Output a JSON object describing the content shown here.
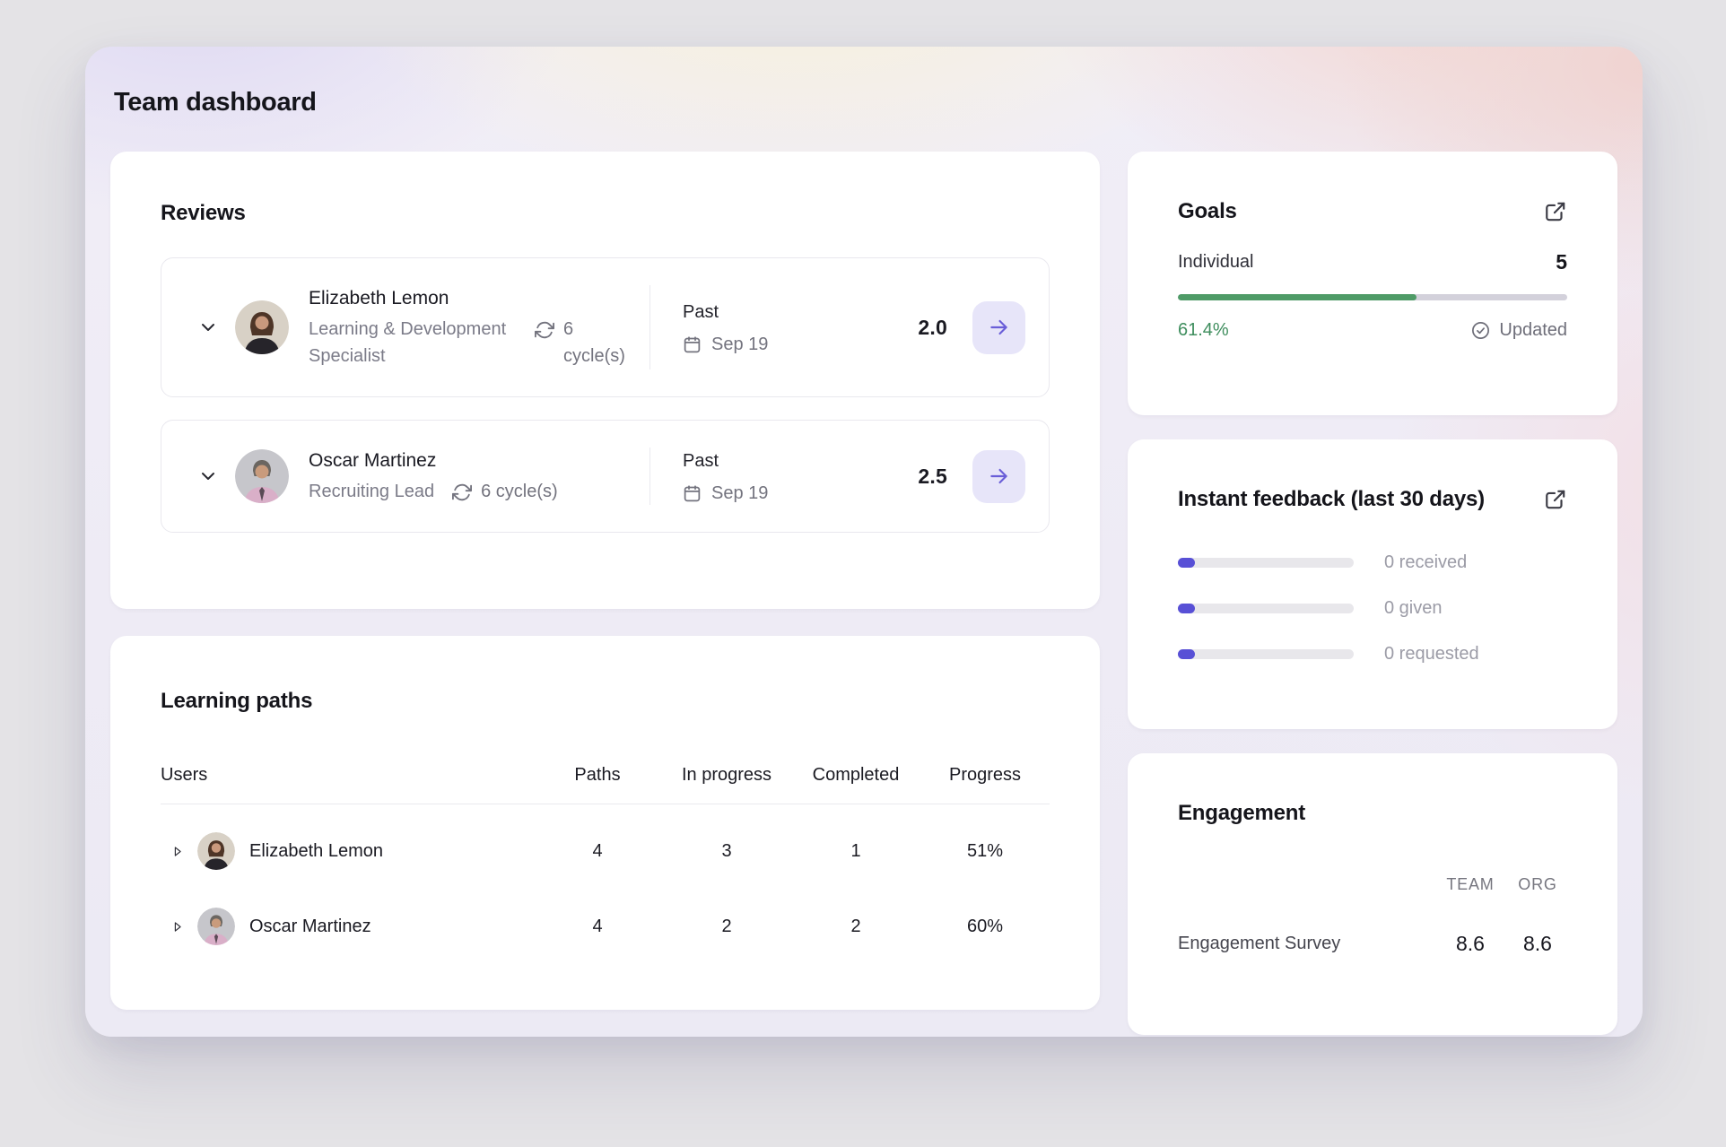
{
  "page": {
    "title": "Team dashboard"
  },
  "colors": {
    "accent_purple": "#5850D6",
    "button_purple_bg": "#E7E5F9",
    "success_green": "#4F9B67",
    "success_green_text": "#3F8E5E",
    "card_background": "#FFFFFF",
    "muted_text": "#9B9BA6"
  },
  "reviews": {
    "heading": "Reviews",
    "rows": [
      {
        "name": "Elizabeth Lemon",
        "role": "Learning & Development Specialist",
        "cycles": "6 cycle(s)",
        "period_label": "Past",
        "date": "Sep 19",
        "score": "2.0"
      },
      {
        "name": "Oscar Martinez",
        "role": "Recruiting Lead",
        "cycles": "6 cycle(s)",
        "period_label": "Past",
        "date": "Sep 19",
        "score": "2.5"
      }
    ]
  },
  "learning": {
    "heading": "Learning paths",
    "columns": [
      "Users",
      "Paths",
      "In progress",
      "Completed",
      "Progress"
    ],
    "rows": [
      {
        "name": "Elizabeth Lemon",
        "paths": "4",
        "in_progress": "3",
        "completed": "1",
        "progress": "51%"
      },
      {
        "name": "Oscar Martinez",
        "paths": "4",
        "in_progress": "2",
        "completed": "2",
        "progress": "60%"
      }
    ]
  },
  "goals": {
    "heading": "Goals",
    "category_label": "Individual",
    "goal_count": "5",
    "percent_label": "61.4%",
    "percent_value": 61.4,
    "status_label": "Updated"
  },
  "feedback": {
    "heading": "Instant feedback (last 30 days)",
    "items": [
      {
        "label": "0 received",
        "value": 0
      },
      {
        "label": "0 given",
        "value": 0
      },
      {
        "label": "0 requested",
        "value": 0
      }
    ]
  },
  "engagement": {
    "heading": "Engagement",
    "columns": [
      "TEAM",
      "ORG"
    ],
    "rows": [
      {
        "label": "Engagement Survey",
        "team": "8.6",
        "org": "8.6"
      }
    ]
  }
}
